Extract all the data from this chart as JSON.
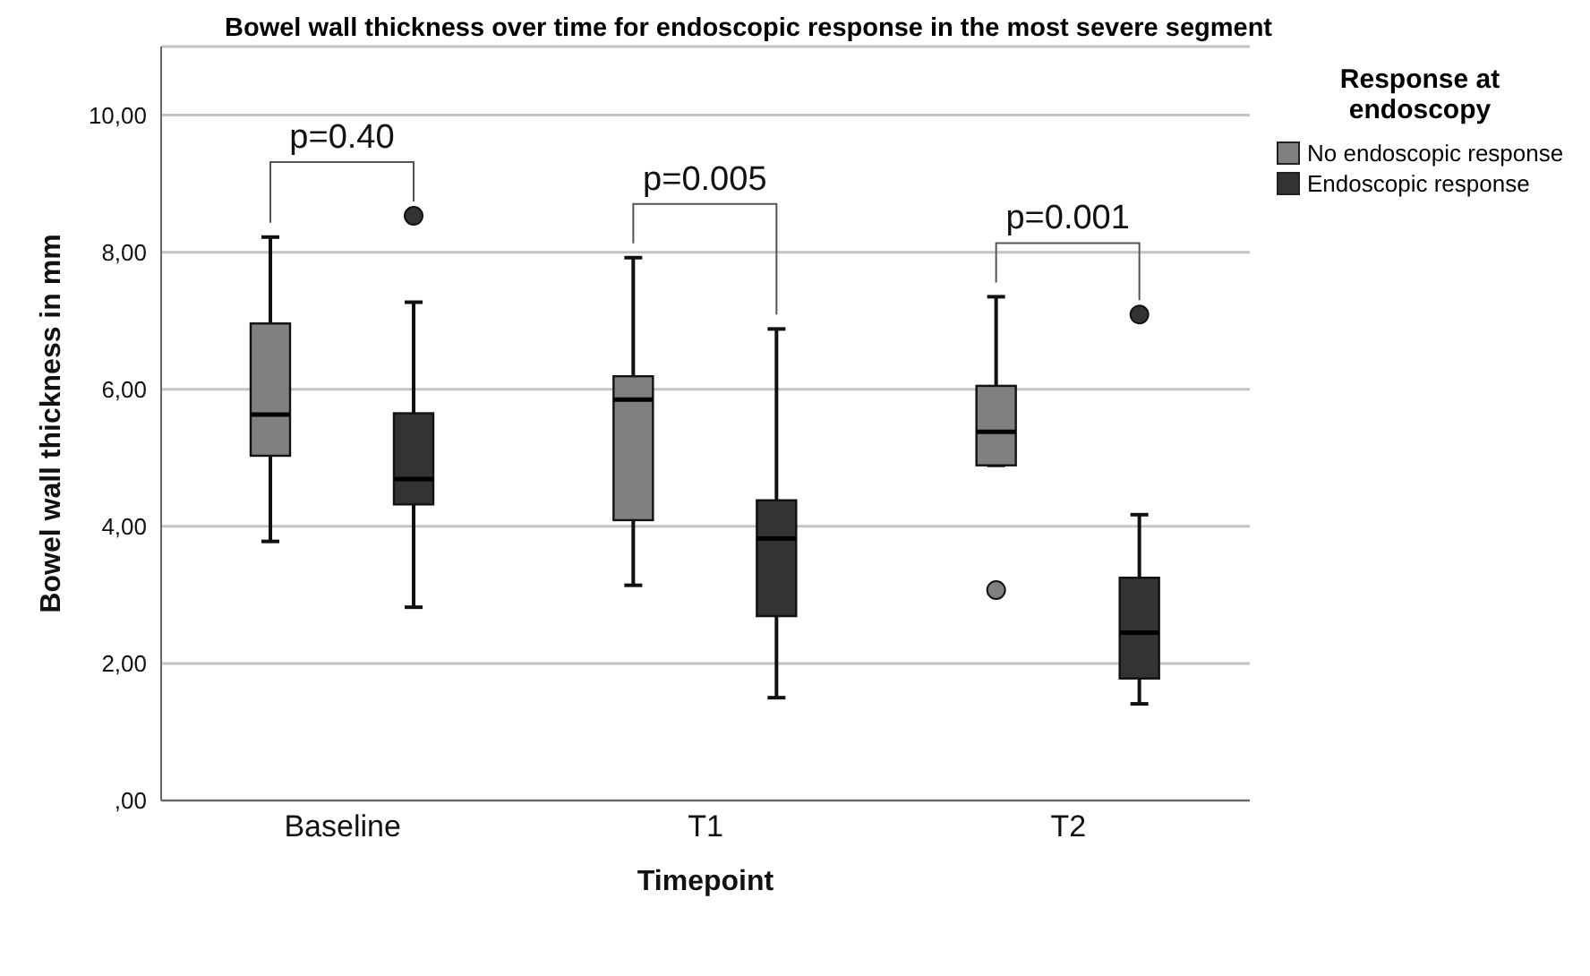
{
  "chart_data": {
    "type": "box",
    "title": "Bowel wall thickness over time for endoscopic response in the most severe segment",
    "xlabel": "Timepoint",
    "ylabel": "Bowel wall thickness in mm",
    "legend_title": "Response at endoscopy",
    "categories": [
      "Baseline",
      "T1",
      "T2"
    ],
    "series": [
      {
        "name": "No endoscopic response",
        "color": "#808080",
        "boxes": [
          {
            "low": 3.78,
            "q1": 5.03,
            "median": 5.63,
            "q3": 6.96,
            "high": 8.22
          },
          {
            "low": 3.14,
            "q1": 4.09,
            "median": 5.85,
            "q3": 6.19,
            "high": 7.92
          },
          {
            "low": 4.89,
            "q1": 4.89,
            "median": 5.38,
            "q3": 6.05,
            "high": 7.35,
            "outliers": [
              3.07
            ]
          }
        ]
      },
      {
        "name": "Endoscopic response",
        "color": "#333333",
        "boxes": [
          {
            "low": 2.82,
            "q1": 4.32,
            "median": 4.69,
            "q3": 5.65,
            "high": 7.27,
            "outliers": [
              8.53
            ]
          },
          {
            "low": 1.5,
            "q1": 2.69,
            "median": 3.82,
            "q3": 4.38,
            "high": 6.88
          },
          {
            "low": 1.41,
            "q1": 1.78,
            "median": 2.45,
            "q3": 3.25,
            "high": 4.17,
            "outliers": [
              7.09
            ]
          }
        ]
      }
    ],
    "annotations": [
      "p=0.40",
      "p=0.005",
      "p=0.001"
    ],
    "ylim": [
      0,
      11
    ],
    "yticks": [
      {
        "value": 0,
        "label": ",00"
      },
      {
        "value": 2,
        "label": "2,00"
      },
      {
        "value": 4,
        "label": "4,00"
      },
      {
        "value": 6,
        "label": "6,00"
      },
      {
        "value": 8,
        "label": "8,00"
      },
      {
        "value": 10,
        "label": "10,00"
      }
    ],
    "grid": "y",
    "legend": "top right"
  }
}
